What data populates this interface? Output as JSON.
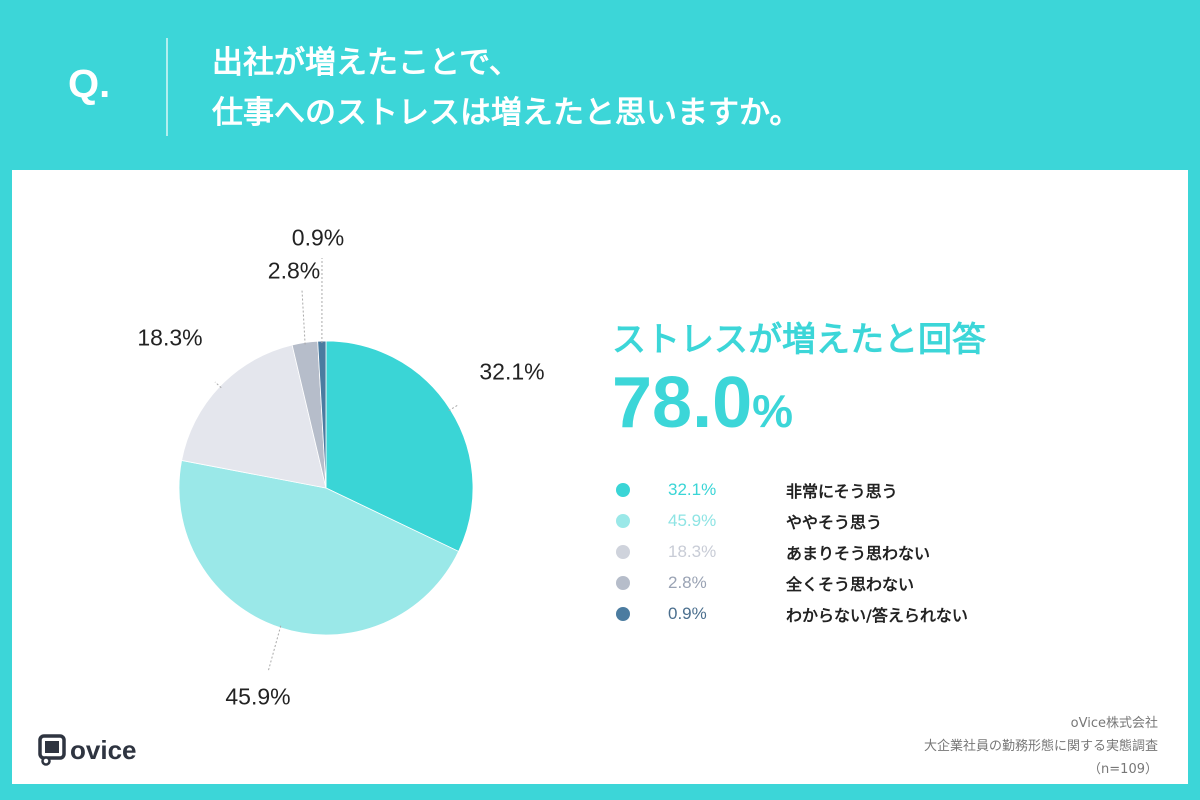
{
  "header": {
    "q_label": "Q.",
    "title_line1": "出社が増えたことで、",
    "title_line2": "仕事へのストレスは増えたと思いますか。"
  },
  "summary": {
    "headline": "ストレスが増えたと回答",
    "value": "78.0",
    "unit": "%"
  },
  "chart_data": {
    "type": "pie",
    "title": "出社が増えたことで、仕事へのストレスは増えたと思いますか。",
    "start_angle": "top, clockwise",
    "slices": [
      {
        "label": "非常にそう思う",
        "value": 32.1,
        "display": "32.1%",
        "color": "#3ad5d6"
      },
      {
        "label": "ややそう思う",
        "value": 45.9,
        "display": "45.9%",
        "color": "#9ae8e8"
      },
      {
        "label": "あまりそう思わない",
        "value": 18.3,
        "display": "18.3%",
        "color": "#e4e6ed"
      },
      {
        "label": "全くそう思わない",
        "value": 2.8,
        "display": "2.8%",
        "color": "#b6bdca"
      },
      {
        "label": "わからない/答えられない",
        "value": 0.9,
        "display": "0.9%",
        "color": "#4b7ca0"
      }
    ],
    "legend_placement": "right"
  },
  "legend_value_colors": [
    "#3ad5d6",
    "#8ee4e4",
    "#c8ccd6",
    "#9aa3b4",
    "#4b6f8e"
  ],
  "footer": {
    "logo": "ovice",
    "company": "oVice株式会社",
    "survey": "大企業社員の勤務形態に関する実態調査",
    "n": "（n=109）"
  }
}
